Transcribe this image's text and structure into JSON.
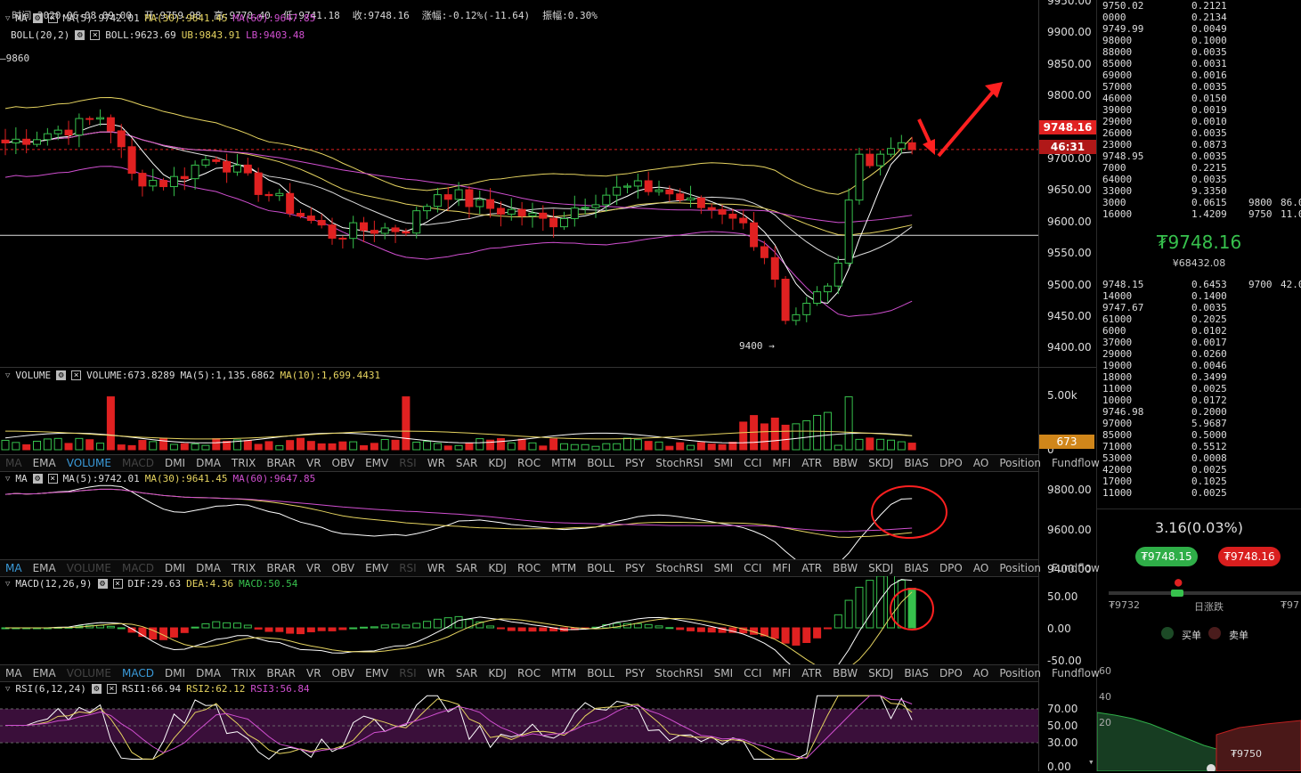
{
  "top_info": {
    "time": "时间:2020-06-08 09:00",
    "open": "开:9759.98",
    "high": "高:9770.40",
    "low": "低:9741.18",
    "close": "收:9748.16",
    "change": "涨幅:-0.12%(-11.64)",
    "amplitude": "振幅:0.30%"
  },
  "main_chart": {
    "legend_ma": {
      "name": "MA",
      "ma5": "MA(5):9742.01",
      "ma30": "MA(30):9641.45",
      "ma60": "MA(60):9647.85"
    },
    "legend_boll": {
      "name": "BOLL(20,2)",
      "boll": "BOLL:9623.69",
      "ub": "UB:9843.91",
      "lb": "LB:9403.48"
    },
    "high_marker": "9860",
    "low_marker": "9400 →",
    "current_price_tag": "9748.16",
    "countdown_tag": "46:31",
    "yaxis": [
      "9950.00",
      "9900.00",
      "9850.00",
      "9800.00",
      "9750.00",
      "9700.00",
      "9650.00",
      "9600.00",
      "9550.00",
      "9500.00",
      "9450.00",
      "9400.00"
    ]
  },
  "volume_chart": {
    "legend": {
      "name": "VOLUME",
      "volume": "VOLUME:673.8289",
      "ma5": "MA(5):1,135.6862",
      "ma10": "MA(10):1,699.4431"
    },
    "yaxis": [
      "5.00k",
      "0"
    ],
    "current_tag": "673"
  },
  "tabs": [
    "MA",
    "EMA",
    "VOLUME",
    "MACD",
    "DMI",
    "DMA",
    "TRIX",
    "BRAR",
    "VR",
    "OBV",
    "EMV",
    "RSI",
    "WR",
    "SAR",
    "KDJ",
    "ROC",
    "MTM",
    "BOLL",
    "PSY",
    "StochRSI",
    "SMI",
    "CCI",
    "MFI",
    "ATR",
    "BBW",
    "SKDJ",
    "BIAS",
    "DPO",
    "AO",
    "Position",
    "Fundflow"
  ],
  "ma_chart": {
    "legend": {
      "name": "MA",
      "ma5": "MA(5):9742.01",
      "ma30": "MA(30):9641.45",
      "ma60": "MA(60):9647.85"
    },
    "yaxis": [
      "9800.00",
      "9600.00",
      "9400.00"
    ]
  },
  "macd_chart": {
    "legend": {
      "name": "MACD(12,26,9)",
      "dif": "DIF:29.63",
      "dea": "DEA:4.36",
      "macd": "MACD:50.54"
    },
    "yaxis": [
      "50.00",
      "0.00",
      "-50.00"
    ]
  },
  "rsi_chart": {
    "legend": {
      "name": "RSI(6,12,24)",
      "rsi1": "RSI1:66.94",
      "rsi2": "RSI2:62.12",
      "rsi3": "RSI3:56.84"
    },
    "yaxis": [
      "70.00",
      "50.00",
      "30.00",
      "0.00"
    ]
  },
  "orderbook": {
    "asks": [
      {
        "price": "9750.02",
        "amount": "0.2121"
      },
      {
        "price": "0000",
        "amount": "0.2134"
      },
      {
        "price": "9749.99",
        "amount": "0.0049"
      },
      {
        "price": "98000",
        "amount": "0.1000"
      },
      {
        "price": "88000",
        "amount": "0.0035"
      },
      {
        "price": "85000",
        "amount": "0.0031"
      },
      {
        "price": "69000",
        "amount": "0.0016"
      },
      {
        "price": "57000",
        "amount": "0.0035"
      },
      {
        "price": "46000",
        "amount": "0.0150"
      },
      {
        "price": "39000",
        "amount": "0.0019"
      },
      {
        "price": "29000",
        "amount": "0.0010"
      },
      {
        "price": "26000",
        "amount": "0.0035"
      },
      {
        "price": "23000",
        "amount": "0.0873"
      },
      {
        "price": "9748.95",
        "amount": "0.0035"
      },
      {
        "price": "7000",
        "amount": "0.2215"
      },
      {
        "price": "64000",
        "amount": "0.0035"
      },
      {
        "price": "33000",
        "amount": "9.3350"
      },
      {
        "price": "3000",
        "amount": "0.0615",
        "b1": "9800",
        "b2": "86.0"
      },
      {
        "price": "16000",
        "amount": "1.4209",
        "b1": "9750",
        "b2": "11.0"
      }
    ],
    "last_price": "₮9748.16",
    "last_price_cny": "¥68432.08",
    "bids": [
      {
        "price": "9748.15",
        "amount": "0.6453",
        "b1": "9700",
        "b2": "42.0"
      },
      {
        "price": "14000",
        "amount": "0.1400"
      },
      {
        "price": "9747.67",
        "amount": "0.0035"
      },
      {
        "price": "61000",
        "amount": "0.2025"
      },
      {
        "price": "6000",
        "amount": "0.0102"
      },
      {
        "price": "37000",
        "amount": "0.0017"
      },
      {
        "price": "29000",
        "amount": "0.0260"
      },
      {
        "price": "19000",
        "amount": "0.0046"
      },
      {
        "price": "18000",
        "amount": "0.3499"
      },
      {
        "price": "11000",
        "amount": "0.0025"
      },
      {
        "price": "10000",
        "amount": "0.0172"
      },
      {
        "price": "9746.98",
        "amount": "0.2000"
      },
      {
        "price": "97000",
        "amount": "5.9687"
      },
      {
        "price": "85000",
        "amount": "0.5000"
      },
      {
        "price": "71000",
        "amount": "0.5512"
      },
      {
        "price": "53000",
        "amount": "0.0008"
      },
      {
        "price": "42000",
        "amount": "0.0025"
      },
      {
        "price": "17000",
        "amount": "0.1025"
      },
      {
        "price": "11000",
        "amount": "0.0025"
      }
    ],
    "change_pct": "3.16(0.03%)",
    "buy_price": "₮9748.15",
    "sell_price": "₮9748.16",
    "range_low": "₮9732",
    "range_label": "日涨跌",
    "range_high": "₮97",
    "buy_label": "买单",
    "sell_label": "卖单",
    "depth_y": [
      "60",
      "40",
      "20"
    ],
    "depth_x": "₮9750"
  },
  "colors": {
    "up": "#37c14d",
    "down": "#e02121",
    "ma5": "#ffffff",
    "ma30": "#e6d460",
    "ma60": "#d04fd0",
    "annotation": "#ff2020"
  }
}
